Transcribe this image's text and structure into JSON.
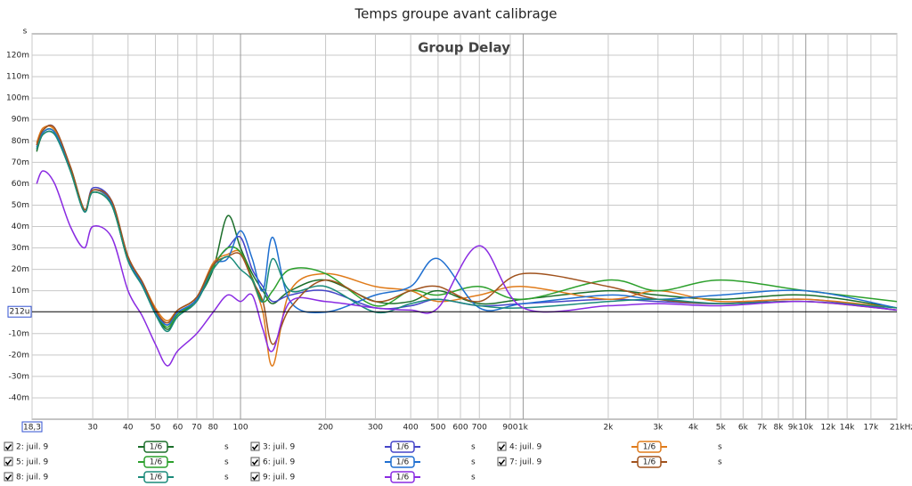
{
  "chart_data": {
    "type": "line",
    "title": "Temps groupe avant calibrage",
    "subtitle": "Group Delay",
    "y_unit": "s",
    "xscale": "log",
    "grid": true,
    "xlim": [
      18.3,
      21000
    ],
    "ylim": [
      -0.05,
      0.13
    ],
    "xticks": [
      {
        "value": 18.3,
        "label": "18,3"
      },
      30,
      40,
      50,
      60,
      70,
      80,
      100,
      200,
      300,
      400,
      500,
      600,
      700,
      900,
      {
        "value": 1000,
        "label": "1k"
      },
      {
        "value": 2000,
        "label": "2k"
      },
      {
        "value": 3000,
        "label": "3k"
      },
      {
        "value": 4000,
        "label": "4k"
      },
      {
        "value": 5000,
        "label": "5k"
      },
      {
        "value": 6000,
        "label": "6k"
      },
      {
        "value": 7000,
        "label": "7k"
      },
      {
        "value": 8000,
        "label": "8k"
      },
      {
        "value": 9000,
        "label": "9k"
      },
      {
        "value": 10000,
        "label": "10k"
      },
      {
        "value": 12000,
        "label": "12k"
      },
      {
        "value": 14000,
        "label": "14k"
      },
      {
        "value": 17000,
        "label": "17k"
      },
      {
        "value": 21000,
        "label": "21kHz"
      }
    ],
    "yticks": [
      {
        "value": -0.04,
        "label": "-40m"
      },
      {
        "value": -0.03,
        "label": "-30m"
      },
      {
        "value": -0.02,
        "label": "-20m"
      },
      {
        "value": -0.01,
        "label": "-10m"
      },
      {
        "value": 0.01,
        "label": "10m"
      },
      {
        "value": 0.02,
        "label": "20m"
      },
      {
        "value": 0.03,
        "label": "30m"
      },
      {
        "value": 0.04,
        "label": "40m"
      },
      {
        "value": 0.05,
        "label": "50m"
      },
      {
        "value": 0.06,
        "label": "60m"
      },
      {
        "value": 0.07,
        "label": "70m"
      },
      {
        "value": 0.08,
        "label": "80m"
      },
      {
        "value": 0.09,
        "label": "90m"
      },
      {
        "value": 0.1,
        "label": "100m"
      },
      {
        "value": 0.11,
        "label": "110m"
      },
      {
        "value": 0.12,
        "label": "120m"
      }
    ],
    "cursor": {
      "value": 0.000212,
      "label": "212u"
    },
    "legend_smoothing": "1/6",
    "legend_unit": "s",
    "x": [
      19,
      20,
      22,
      25,
      28,
      30,
      35,
      40,
      45,
      50,
      55,
      60,
      70,
      80,
      90,
      100,
      110,
      120,
      130,
      150,
      200,
      300,
      400,
      500,
      700,
      1000,
      2000,
      3000,
      5000,
      10000,
      21000
    ],
    "series": [
      {
        "name": "2: juil. 9",
        "color": "#1b6e2a",
        "values": [
          0.075,
          0.083,
          0.083,
          0.068,
          0.048,
          0.056,
          0.05,
          0.024,
          0.013,
          0.0,
          -0.008,
          -0.002,
          0.006,
          0.02,
          0.045,
          0.03,
          0.018,
          0.01,
          0.004,
          0.01,
          0.015,
          0.005,
          0.005,
          0.01,
          0.004,
          0.006,
          0.01,
          0.008,
          0.006,
          0.008,
          0.002
        ]
      },
      {
        "name": "3: juil. 9",
        "color": "#4545c8",
        "values": [
          0.078,
          0.085,
          0.086,
          0.067,
          0.047,
          0.058,
          0.052,
          0.025,
          0.014,
          0.001,
          -0.006,
          0.0,
          0.006,
          0.022,
          0.03,
          0.035,
          0.02,
          0.012,
          0.005,
          0.008,
          0.01,
          0.002,
          0.003,
          0.006,
          0.003,
          0.004,
          0.006,
          0.005,
          0.004,
          0.006,
          0.001
        ]
      },
      {
        "name": "4: juil. 9",
        "color": "#e07b1a",
        "values": [
          0.079,
          0.086,
          0.085,
          0.068,
          0.048,
          0.057,
          0.051,
          0.026,
          0.014,
          0.002,
          -0.004,
          0.001,
          0.007,
          0.023,
          0.027,
          0.028,
          0.015,
          0.0,
          -0.025,
          0.01,
          0.018,
          0.012,
          0.01,
          0.005,
          0.008,
          0.012,
          0.006,
          0.01,
          0.005,
          0.006,
          0.002
        ]
      },
      {
        "name": "5: juil. 9",
        "color": "#2ca02c",
        "values": [
          0.076,
          0.084,
          0.084,
          0.066,
          0.047,
          0.056,
          0.05,
          0.024,
          0.013,
          0.0,
          -0.007,
          -0.001,
          0.006,
          0.021,
          0.03,
          0.028,
          0.016,
          0.005,
          0.01,
          0.02,
          0.018,
          0.003,
          0.01,
          0.008,
          0.012,
          0.006,
          0.015,
          0.01,
          0.015,
          0.01,
          0.005
        ]
      },
      {
        "name": "6: juil. 9",
        "color": "#1f6fd0",
        "values": [
          0.077,
          0.084,
          0.084,
          0.067,
          0.047,
          0.057,
          0.051,
          0.025,
          0.013,
          0.0,
          -0.006,
          0.0,
          0.006,
          0.022,
          0.025,
          0.038,
          0.025,
          0.01,
          0.035,
          0.005,
          0.0,
          0.008,
          0.012,
          0.025,
          0.002,
          0.004,
          0.008,
          0.006,
          0.008,
          0.01,
          0.002
        ]
      },
      {
        "name": "7: juil. 9",
        "color": "#a0521d",
        "values": [
          0.078,
          0.085,
          0.086,
          0.068,
          0.048,
          0.057,
          0.052,
          0.026,
          0.014,
          0.001,
          -0.005,
          0.001,
          0.007,
          0.022,
          0.026,
          0.027,
          0.015,
          0.005,
          -0.015,
          0.002,
          0.015,
          0.005,
          0.01,
          0.012,
          0.005,
          0.018,
          0.012,
          0.006,
          0.004,
          0.005,
          0.001
        ]
      },
      {
        "name": "8: juil. 9",
        "color": "#1a8a7a",
        "values": [
          0.076,
          0.083,
          0.083,
          0.066,
          0.047,
          0.056,
          0.05,
          0.024,
          0.012,
          -0.001,
          -0.009,
          -0.002,
          0.005,
          0.02,
          0.026,
          0.02,
          0.015,
          0.005,
          0.025,
          0.01,
          0.012,
          0.0,
          0.004,
          0.006,
          0.003,
          0.002,
          0.005,
          0.006,
          0.004,
          0.005,
          0.002
        ]
      },
      {
        "name": "9: juil. 9",
        "color": "#8a2be2",
        "values": [
          0.06,
          0.066,
          0.06,
          0.04,
          0.03,
          0.04,
          0.035,
          0.01,
          -0.002,
          -0.015,
          -0.025,
          -0.018,
          -0.01,
          0.0,
          0.008,
          0.005,
          0.008,
          -0.008,
          -0.018,
          0.005,
          0.005,
          0.002,
          0.001,
          0.002,
          0.031,
          0.002,
          0.003,
          0.004,
          0.003,
          0.005,
          0.001
        ]
      }
    ]
  }
}
